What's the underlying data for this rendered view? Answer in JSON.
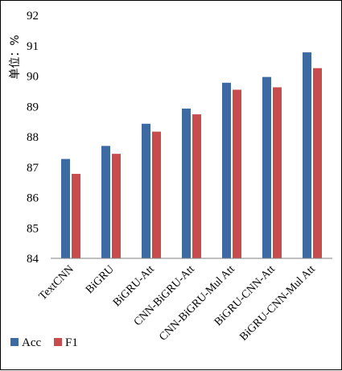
{
  "chart_data": {
    "type": "bar",
    "title": "",
    "xlabel": "",
    "ylabel": "单位：%",
    "ylim": [
      84,
      92
    ],
    "yticks": [
      84,
      85,
      86,
      87,
      88,
      89,
      90,
      91,
      92
    ],
    "grid": false,
    "legend_position": "bottom-left",
    "categories": [
      "TextCNN",
      "BiGRU",
      "BiGRU-Att",
      "CNN-BiGRU-Att",
      "CNN-BiGRU-Mul Att",
      "BiGRU-CNN-Att",
      "BiGRU-CNN-Mul Att"
    ],
    "series": [
      {
        "name": "Acc",
        "color": "#3d6aa3",
        "values": [
          87.27,
          87.7,
          88.43,
          88.93,
          89.78,
          89.97,
          90.78
        ]
      },
      {
        "name": "F1",
        "color": "#c84b4e",
        "values": [
          86.78,
          87.44,
          88.17,
          88.74,
          89.55,
          89.63,
          90.26
        ]
      }
    ]
  }
}
